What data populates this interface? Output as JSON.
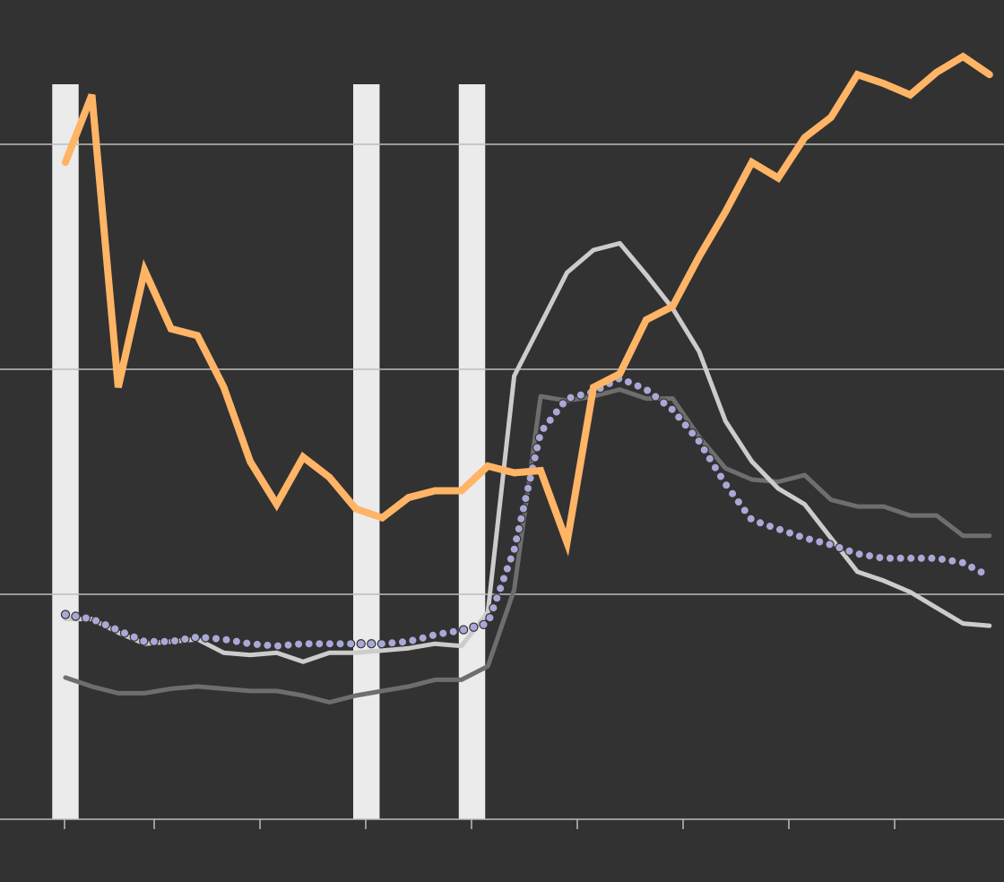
{
  "chart_data": {
    "type": "line",
    "title": "",
    "xlabel": "",
    "ylabel": "",
    "x_tick_count": 9,
    "ylim": [
      0,
      3
    ],
    "y_gridlines": [
      1,
      2,
      3
    ],
    "x": [
      0,
      1,
      2,
      3,
      4,
      5,
      6,
      7,
      8,
      9,
      10,
      11,
      12,
      13,
      14,
      15,
      16,
      17,
      18,
      19,
      20,
      21,
      22,
      23,
      24,
      25,
      26,
      27,
      28,
      29,
      30,
      31,
      32,
      33,
      34,
      35
    ],
    "shaded_periods": [
      [
        -0.5,
        0.5
      ],
      [
        10.9,
        11.9
      ],
      [
        14.9,
        15.9
      ]
    ],
    "colors": {
      "background": "#323232",
      "gridline": "#bdbdbd",
      "shade": "#ebebeb",
      "orange": "#ffb466",
      "light_gray": "#cccccc",
      "dark_gray": "#6e6e6e",
      "purple_dots": "#aaa8d6"
    },
    "series": [
      {
        "style": "thick-orange",
        "values": [
          2.92,
          3.22,
          1.92,
          2.44,
          2.18,
          2.15,
          1.92,
          1.59,
          1.4,
          1.61,
          1.52,
          1.38,
          1.34,
          1.43,
          1.46,
          1.46,
          1.57,
          1.54,
          1.55,
          1.23,
          1.92,
          1.98,
          2.22,
          2.28,
          2.5,
          2.7,
          2.92,
          2.85,
          3.03,
          3.12,
          3.31,
          3.27,
          3.22,
          3.32,
          3.39,
          3.31
        ]
      },
      {
        "style": "light-gray",
        "values": [
          0.89,
          0.89,
          0.83,
          0.78,
          0.79,
          0.8,
          0.74,
          0.73,
          0.74,
          0.7,
          0.74,
          0.74,
          0.75,
          0.76,
          0.78,
          0.77,
          0.92,
          1.97,
          2.2,
          2.43,
          2.53,
          2.56,
          2.42,
          2.27,
          2.08,
          1.77,
          1.59,
          1.47,
          1.4,
          1.25,
          1.1,
          1.06,
          1.01,
          0.94,
          0.87,
          0.86
        ]
      },
      {
        "style": "dark-gray",
        "values": [
          0.63,
          0.59,
          0.56,
          0.56,
          0.58,
          0.59,
          0.58,
          0.57,
          0.57,
          0.55,
          0.52,
          0.55,
          0.57,
          0.59,
          0.62,
          0.62,
          0.68,
          1.02,
          1.88,
          1.86,
          1.88,
          1.91,
          1.87,
          1.87,
          1.7,
          1.56,
          1.51,
          1.5,
          1.53,
          1.42,
          1.39,
          1.39,
          1.35,
          1.35,
          1.26,
          1.26
        ]
      },
      {
        "style": "purple-dotted",
        "values": [
          0.91,
          0.89,
          0.84,
          0.79,
          0.79,
          0.81,
          0.8,
          0.78,
          0.77,
          0.78,
          0.78,
          0.78,
          0.78,
          0.79,
          0.82,
          0.84,
          0.87,
          1.2,
          1.72,
          1.87,
          1.9,
          1.96,
          1.91,
          1.82,
          1.68,
          1.49,
          1.33,
          1.29,
          1.25,
          1.22,
          1.18,
          1.16,
          1.16,
          1.16,
          1.14,
          1.08
        ]
      }
    ]
  }
}
